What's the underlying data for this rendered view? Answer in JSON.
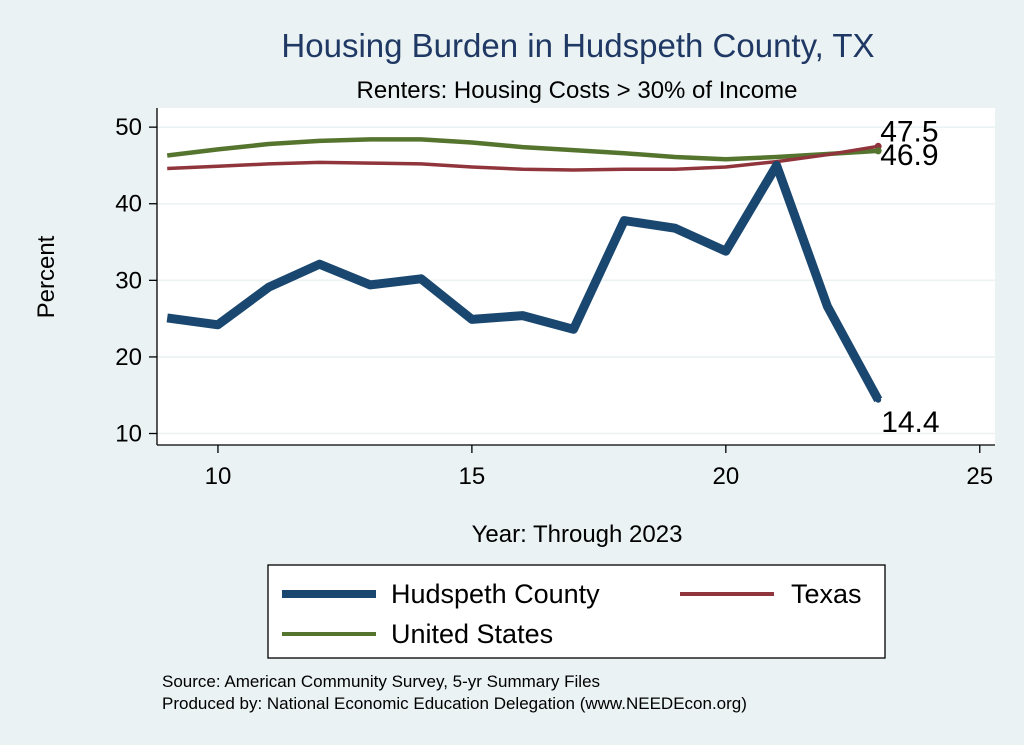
{
  "chart_data": {
    "type": "line",
    "title": "Housing Burden in Hudspeth County, TX",
    "subtitle": "Renters: Housing Costs > 30% of Income",
    "xlabel": "Year: Through 2023",
    "ylabel": "Percent",
    "xlim": [
      8.8,
      25.3
    ],
    "ylim": [
      8.5,
      52.5
    ],
    "xticks": [
      10,
      15,
      20,
      25
    ],
    "yticks": [
      10,
      20,
      30,
      40,
      50
    ],
    "grid": true,
    "legend_position": "bottom",
    "series": [
      {
        "name": "Hudspeth County",
        "color": "#1a476f",
        "x": [
          9,
          10,
          11,
          12,
          13,
          14,
          15,
          16,
          17,
          18,
          19,
          20,
          21,
          22,
          23
        ],
        "values": [
          25.1,
          24.2,
          29.1,
          32.1,
          29.4,
          30.2,
          24.9,
          25.4,
          23.6,
          37.8,
          36.8,
          33.8,
          45.0,
          26.6,
          14.4
        ],
        "end_label": "14.4"
      },
      {
        "name": "Texas",
        "color": "#90353b",
        "x": [
          9,
          10,
          11,
          12,
          13,
          14,
          15,
          16,
          17,
          18,
          19,
          20,
          21,
          22,
          23
        ],
        "values": [
          44.6,
          44.9,
          45.2,
          45.4,
          45.3,
          45.2,
          44.8,
          44.5,
          44.4,
          44.5,
          44.5,
          44.8,
          45.5,
          46.4,
          47.5
        ],
        "end_label": "47.5"
      },
      {
        "name": "United States",
        "color": "#55752f",
        "x": [
          9,
          10,
          11,
          12,
          13,
          14,
          15,
          16,
          17,
          18,
          19,
          20,
          21,
          22,
          23
        ],
        "values": [
          46.3,
          47.1,
          47.8,
          48.2,
          48.4,
          48.4,
          48.0,
          47.4,
          47.0,
          46.6,
          46.1,
          45.8,
          46.1,
          46.5,
          46.9
        ],
        "end_label": "46.9"
      }
    ]
  },
  "footer": {
    "source": "Source: American Community Survey, 5-yr Summary Files",
    "produced_by": "Produced by: National Economic Education Delegation (www.NEEDEcon.org)"
  },
  "colors": {
    "background": "#eaf2f3",
    "plot_background": "#ffffff",
    "title": "#1f3864",
    "grid": "#eaf2f3"
  }
}
